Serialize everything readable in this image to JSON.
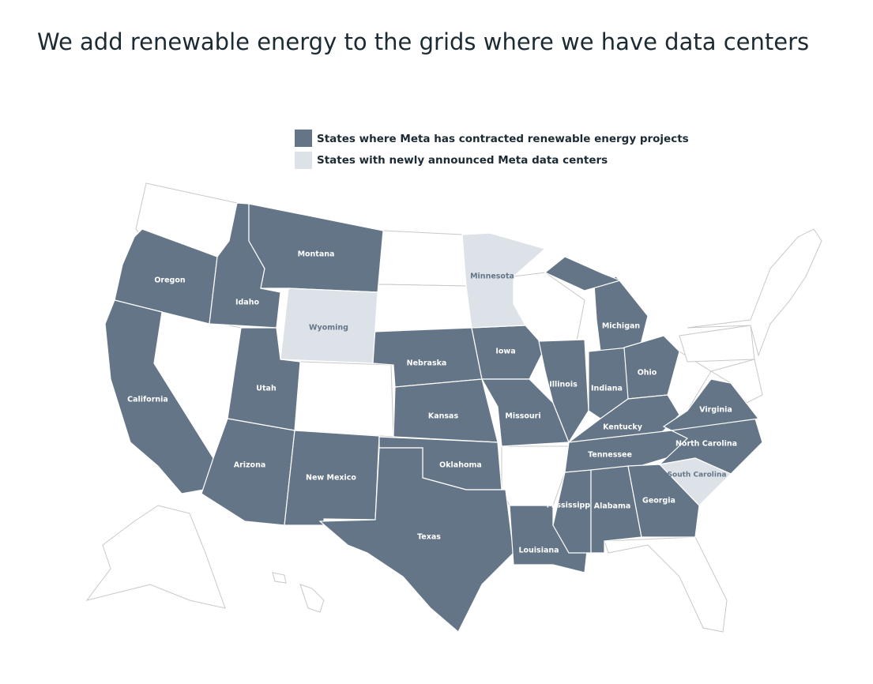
{
  "header": {
    "title": "We add renewable energy to the grids where we have data centers"
  },
  "legend": [
    {
      "label": "States where Meta has contracted renewable energy projects",
      "color": "#647587",
      "states": [
        "Oregon",
        "California",
        "Idaho",
        "Montana",
        "Utah",
        "Arizona",
        "New Mexico",
        "Nebraska",
        "Kansas",
        "Oklahoma",
        "Texas",
        "Iowa",
        "Missouri",
        "Illinois",
        "Michigan",
        "Indiana",
        "Ohio",
        "Kentucky",
        "Tennessee",
        "Louisiana",
        "Mississippi",
        "Alabama",
        "Georgia",
        "North Carolina",
        "Virginia"
      ]
    },
    {
      "label": "States with newly announced Meta data centers",
      "color": "#dde2e9",
      "states": [
        "Wyoming",
        "Minnesota",
        "South Carolina"
      ]
    }
  ]
}
